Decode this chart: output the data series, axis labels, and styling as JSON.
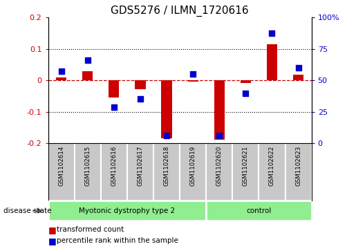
{
  "title": "GDS5276 / ILMN_1720616",
  "samples": [
    "GSM1102614",
    "GSM1102615",
    "GSM1102616",
    "GSM1102617",
    "GSM1102618",
    "GSM1102619",
    "GSM1102620",
    "GSM1102621",
    "GSM1102622",
    "GSM1102623"
  ],
  "group1_label": "Myotonic dystrophy type 2",
  "group1_count": 6,
  "group2_label": "control",
  "group2_count": 4,
  "group_color": "#90EE90",
  "red_values": [
    0.01,
    0.03,
    -0.055,
    -0.028,
    -0.185,
    -0.005,
    -0.19,
    -0.008,
    0.115,
    0.018
  ],
  "blue_values": [
    0.03,
    0.065,
    -0.085,
    -0.06,
    -0.175,
    0.02,
    -0.175,
    -0.042,
    0.15,
    0.04
  ],
  "ylim_left": [
    -0.2,
    0.2
  ],
  "bar_width": 0.4,
  "marker_size": 28,
  "red_color": "#CC0000",
  "blue_color": "#0000CC",
  "background_plot": "#FFFFFF",
  "background_samples": "#C8C8C8",
  "label_fontsize": 8,
  "title_fontsize": 11,
  "legend_red_label": "transformed count",
  "legend_blue_label": "percentile rank within the sample",
  "disease_state_label": "disease state"
}
